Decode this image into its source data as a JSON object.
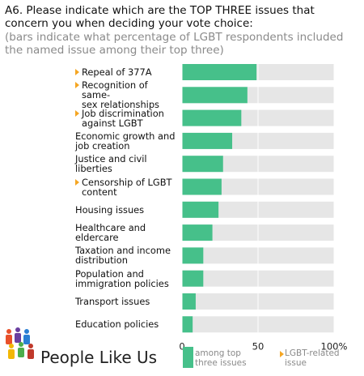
{
  "title": "A6. Please indicate which are the TOP THREE issues that concern you when deciding your vote choice:",
  "subtitle": "(bars indicate what percentage of LGBT respondents included the named issue among their top three)",
  "chart_data": {
    "type": "bar",
    "orientation": "horizontal",
    "categories": [
      "Repeal of 377A",
      "Recognition of same-sex relationships",
      "Job discrimination against LGBT",
      "Economic growth and job creation",
      "Justice and civil liberties",
      "Censorship of LGBT content",
      "Housing issues",
      "Healthcare and eldercare",
      "Taxation and income distribution",
      "Population and immigration policies",
      "Transport issues",
      "Education policies"
    ],
    "category_lines": [
      [
        "Repeal of 377A"
      ],
      [
        "Recognition of same-",
        "sex relationships"
      ],
      [
        "Job discrimination",
        "against LGBT"
      ],
      [
        "Economic growth and",
        "job creation"
      ],
      [
        "Justice and civil",
        "liberties"
      ],
      [
        "Censorship of LGBT",
        "content"
      ],
      [
        "Housing issues"
      ],
      [
        "Healthcare and",
        "eldercare"
      ],
      [
        "Taxation and income",
        "distribution"
      ],
      [
        "Population and",
        "immigration policies"
      ],
      [
        "Transport issues"
      ],
      [
        "Education policies"
      ]
    ],
    "lgbt_related": [
      true,
      true,
      true,
      false,
      false,
      true,
      false,
      false,
      false,
      false,
      false,
      false
    ],
    "values": [
      49,
      43,
      39,
      33,
      27,
      26,
      24,
      20,
      14,
      14,
      9,
      7
    ],
    "xlim": [
      0,
      100
    ],
    "x_ticks": [
      "0",
      "50",
      "100%"
    ],
    "bar_color": "#46c08a",
    "track_color": "#e6e6e6",
    "marker_color": "#f5a623",
    "legend": {
      "bar_label_lines": [
        "among top",
        "three issues"
      ],
      "marker_label_lines": [
        "LGBT-related",
        "issue"
      ]
    }
  },
  "brand": {
    "name": "People Like Us",
    "logo_colors": [
      "#e8502a",
      "#6a3fa0",
      "#2a7fd4",
      "#f2b705",
      "#4cae4c",
      "#c0392b"
    ]
  }
}
